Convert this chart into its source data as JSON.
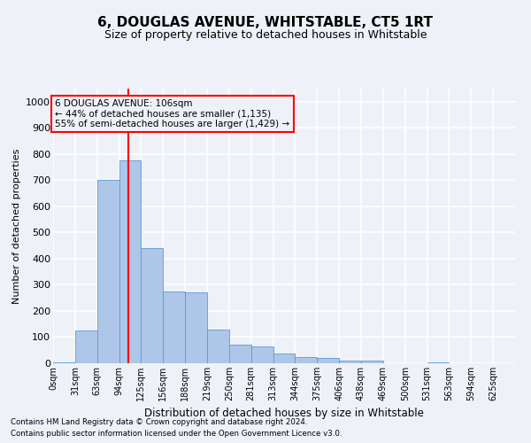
{
  "title": "6, DOUGLAS AVENUE, WHITSTABLE, CT5 1RT",
  "subtitle": "Size of property relative to detached houses in Whitstable",
  "xlabel": "Distribution of detached houses by size in Whitstable",
  "ylabel": "Number of detached properties",
  "bar_labels": [
    "0sqm",
    "31sqm",
    "63sqm",
    "94sqm",
    "125sqm",
    "156sqm",
    "188sqm",
    "219sqm",
    "250sqm",
    "281sqm",
    "313sqm",
    "344sqm",
    "375sqm",
    "406sqm",
    "438sqm",
    "469sqm",
    "500sqm",
    "531sqm",
    "563sqm",
    "594sqm",
    "625sqm"
  ],
  "bar_values": [
    5,
    125,
    700,
    775,
    440,
    275,
    270,
    130,
    70,
    65,
    38,
    25,
    22,
    10,
    10,
    0,
    0,
    5,
    0,
    0,
    0
  ],
  "bar_color": "#aec6e8",
  "bar_edge_color": "#5b9bd5",
  "property_line_x": 106,
  "annotation_title": "6 DOUGLAS AVENUE: 106sqm",
  "annotation_line1": "← 44% of detached houses are smaller (1,135)",
  "annotation_line2": "55% of semi-detached houses are larger (1,429) →",
  "ylim": [
    0,
    1050
  ],
  "yticks": [
    0,
    100,
    200,
    300,
    400,
    500,
    600,
    700,
    800,
    900,
    1000
  ],
  "footer1": "Contains HM Land Registry data © Crown copyright and database right 2024.",
  "footer2": "Contains public sector information licensed under the Open Government Licence v3.0.",
  "bg_color": "#eef2f8",
  "grid_color": "#ffffff",
  "bin_width": 31
}
